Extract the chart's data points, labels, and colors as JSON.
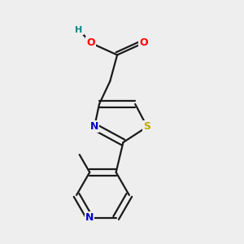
{
  "background_color": "#eeeeee",
  "bond_color": "#1a1a1a",
  "atom_colors": {
    "O": "#ff0000",
    "N": "#0000cc",
    "S": "#bbaa00",
    "C": "#1a1a1a",
    "H": "#008888"
  },
  "figsize": [
    3.0,
    3.0
  ],
  "dpi": 100,
  "xlim": [
    0,
    10
  ],
  "ylim": [
    0,
    10
  ]
}
